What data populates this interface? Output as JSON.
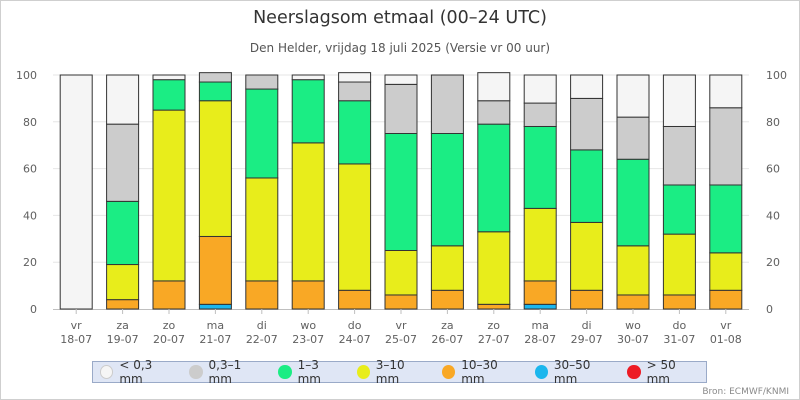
{
  "title": "Neerslagsom etmaal (00–24 UTC)",
  "subtitle": "Den Helder, vrijdag 18 juli 2025 (Versie vr 00 uur)",
  "source": "Bron: ECMWF/KNMI",
  "legend": [
    {
      "label": "< 0,3 mm",
      "color": "#f5f5f5"
    },
    {
      "label": "0,3–1 mm",
      "color": "#cccccc"
    },
    {
      "label": "1–3 mm",
      "color": "#1bed84"
    },
    {
      "label": "3–10 mm",
      "color": "#e8ed1b"
    },
    {
      "label": "10–30 mm",
      "color": "#f9a825"
    },
    {
      "label": "30–50 mm",
      "color": "#1bb6ed"
    },
    {
      "label": "> 50 mm",
      "color": "#ed1b24"
    }
  ],
  "chart_data": {
    "type": "bar",
    "stacked": true,
    "ylim": [
      0,
      100
    ],
    "yticks": [
      0,
      20,
      40,
      60,
      80,
      100
    ],
    "categories": [
      {
        "day": "vr",
        "date": "18-07"
      },
      {
        "day": "za",
        "date": "19-07"
      },
      {
        "day": "zo",
        "date": "20-07"
      },
      {
        "day": "ma",
        "date": "21-07"
      },
      {
        "day": "di",
        "date": "22-07"
      },
      {
        "day": "wo",
        "date": "23-07"
      },
      {
        "day": "do",
        "date": "24-07"
      },
      {
        "day": "vr",
        "date": "25-07"
      },
      {
        "day": "za",
        "date": "26-07"
      },
      {
        "day": "zo",
        "date": "27-07"
      },
      {
        "day": "ma",
        "date": "28-07"
      },
      {
        "day": "di",
        "date": "29-07"
      },
      {
        "day": "wo",
        "date": "30-07"
      },
      {
        "day": "do",
        "date": "31-07"
      },
      {
        "day": "vr",
        "date": "01-08"
      }
    ],
    "series": [
      {
        "name": "> 50 mm",
        "values": [
          0,
          0,
          0,
          0,
          0,
          0,
          0,
          0,
          0,
          0,
          0,
          0,
          0,
          0,
          0
        ]
      },
      {
        "name": "30–50 mm",
        "values": [
          0,
          0,
          0,
          2,
          0,
          0,
          0,
          0,
          0,
          0,
          2,
          0,
          0,
          0,
          0
        ]
      },
      {
        "name": "10–30 mm",
        "values": [
          0,
          4,
          12,
          29,
          12,
          12,
          8,
          6,
          8,
          2,
          10,
          8,
          6,
          6,
          8
        ]
      },
      {
        "name": "3–10 mm",
        "values": [
          0,
          15,
          73,
          58,
          44,
          59,
          54,
          19,
          19,
          31,
          31,
          29,
          21,
          26,
          16
        ]
      },
      {
        "name": "1–3 mm",
        "values": [
          0,
          27,
          13,
          8,
          38,
          27,
          27,
          50,
          48,
          46,
          35,
          31,
          37,
          21,
          29
        ]
      },
      {
        "name": "0,3–1 mm",
        "values": [
          0,
          33,
          0,
          4,
          6,
          0,
          8,
          21,
          25,
          10,
          10,
          22,
          18,
          25,
          33
        ]
      },
      {
        "name": "< 0,3 mm",
        "values": [
          100,
          21,
          2,
          0,
          0,
          2,
          4,
          4,
          0,
          12,
          12,
          10,
          18,
          22,
          14
        ]
      }
    ]
  }
}
